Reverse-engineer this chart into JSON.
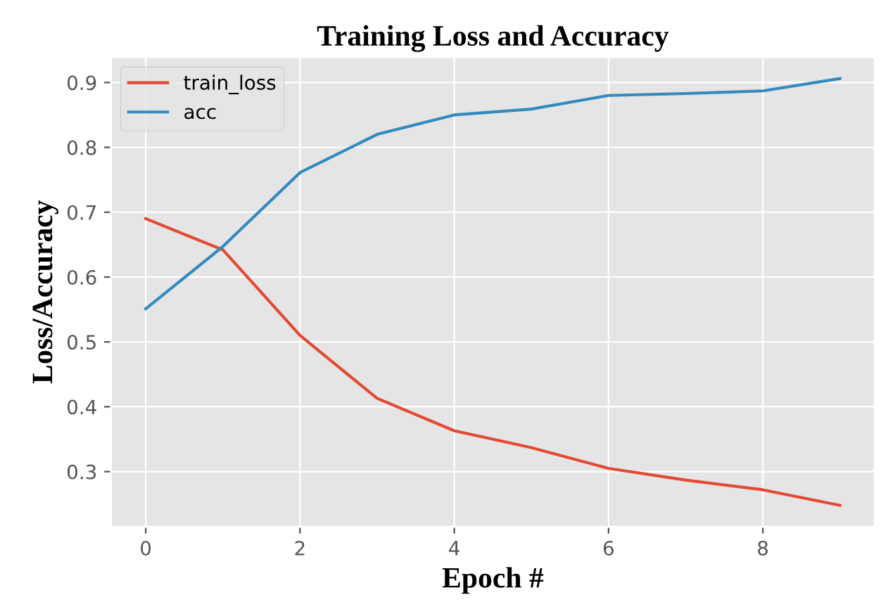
{
  "chart_data": {
    "type": "line",
    "title": "Training Loss and Accuracy",
    "xlabel": "Epoch #",
    "ylabel": "Loss/Accuracy",
    "x": [
      0,
      1,
      2,
      3,
      4,
      5,
      6,
      7,
      8,
      9
    ],
    "series": [
      {
        "name": "train_loss",
        "color": "#e24a33",
        "values": [
          0.69,
          0.642,
          0.51,
          0.413,
          0.363,
          0.337,
          0.305,
          0.287,
          0.272,
          0.248
        ]
      },
      {
        "name": "acc",
        "color": "#348abd",
        "values": [
          0.551,
          0.647,
          0.761,
          0.82,
          0.85,
          0.859,
          0.88,
          0.883,
          0.887,
          0.906
        ]
      }
    ],
    "xlim": [
      -0.45,
      9.45
    ],
    "ylim": [
      0.215,
      0.939
    ],
    "xticks": [
      0,
      2,
      4,
      6,
      8
    ],
    "yticks": [
      0.3,
      0.4,
      0.5,
      0.6,
      0.7,
      0.8,
      0.9
    ],
    "grid": true,
    "legend": "top left",
    "line_style": "solid"
  }
}
